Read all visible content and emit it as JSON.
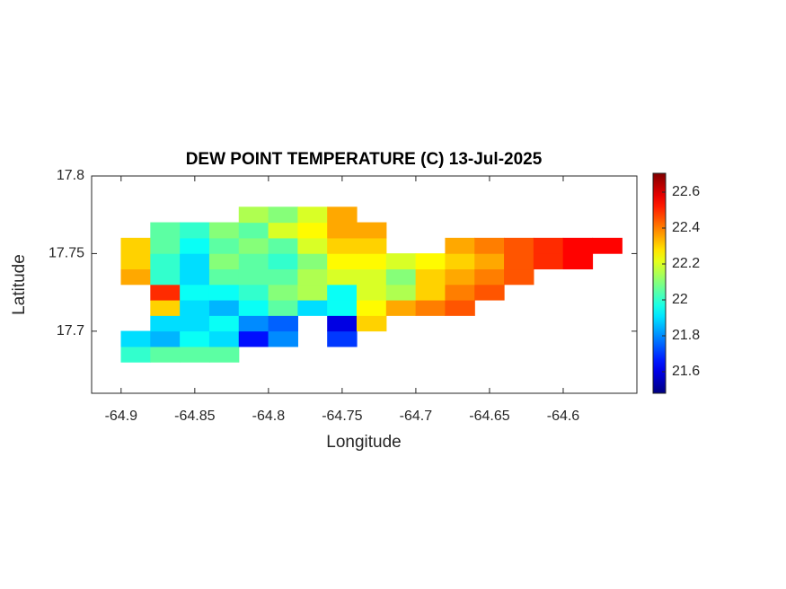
{
  "chart_data": {
    "type": "heatmap",
    "title": "DEW POINT TEMPERATURE (C) 13-Jul-2025",
    "xlabel": "Longitude",
    "ylabel": "Latitude",
    "xlim": [
      -64.92,
      -64.55
    ],
    "ylim": [
      17.66,
      17.8
    ],
    "xticks": [
      -64.9,
      -64.85,
      -64.8,
      -64.75,
      -64.7,
      -64.65,
      -64.6
    ],
    "yticks": [
      17.7,
      17.75,
      17.8
    ],
    "x": [
      -64.89,
      -64.87,
      -64.85,
      -64.83,
      -64.81,
      -64.79,
      -64.77,
      -64.75,
      -64.73,
      -64.71,
      -64.69,
      -64.67,
      -64.65,
      -64.63,
      -64.61,
      -64.59,
      -64.57
    ],
    "y": [
      17.685,
      17.695,
      17.705,
      17.715,
      17.725,
      17.735,
      17.745,
      17.755,
      17.765,
      17.775
    ],
    "z": [
      [
        22.0,
        22.05,
        22.05,
        22.05,
        null,
        null,
        null,
        null,
        null,
        null,
        null,
        null,
        null,
        null,
        null,
        null,
        null
      ],
      [
        21.9,
        21.85,
        21.95,
        21.9,
        21.65,
        21.8,
        null,
        21.7,
        null,
        null,
        null,
        null,
        null,
        null,
        null,
        null,
        null
      ],
      [
        null,
        21.9,
        21.9,
        21.95,
        21.8,
        21.75,
        null,
        21.6,
        22.3,
        null,
        null,
        null,
        null,
        null,
        null,
        null,
        null
      ],
      [
        null,
        22.3,
        21.9,
        21.85,
        21.95,
        22.05,
        21.9,
        21.95,
        22.25,
        22.35,
        22.4,
        22.45,
        null,
        null,
        null,
        null,
        null
      ],
      [
        null,
        22.5,
        21.95,
        21.95,
        22.0,
        22.1,
        22.15,
        21.95,
        22.2,
        22.15,
        22.3,
        22.4,
        22.45,
        null,
        null,
        null,
        null
      ],
      [
        22.35,
        22.0,
        21.9,
        22.05,
        22.05,
        22.05,
        22.15,
        22.2,
        22.2,
        22.1,
        22.3,
        22.35,
        22.4,
        22.45,
        null,
        null,
        null
      ],
      [
        22.3,
        22.0,
        21.9,
        22.1,
        22.05,
        22.0,
        22.1,
        22.25,
        22.25,
        22.2,
        22.25,
        22.3,
        22.35,
        22.45,
        22.5,
        22.55,
        null
      ],
      [
        22.3,
        22.05,
        21.95,
        22.05,
        22.1,
        22.05,
        22.2,
        22.3,
        22.3,
        null,
        null,
        22.35,
        22.4,
        22.45,
        22.5,
        22.55,
        22.55
      ],
      [
        null,
        22.05,
        22.0,
        22.1,
        22.05,
        22.2,
        22.25,
        22.35,
        22.35,
        null,
        null,
        null,
        null,
        null,
        null,
        null,
        null
      ],
      [
        null,
        null,
        null,
        null,
        22.15,
        22.1,
        22.2,
        22.35,
        null,
        null,
        null,
        null,
        null,
        null,
        null,
        null,
        null
      ]
    ],
    "colormap": "jet",
    "clim": [
      21.48,
      22.705
    ],
    "cticks": [
      21.6,
      21.8,
      22,
      22.2,
      22.4,
      22.6
    ]
  }
}
